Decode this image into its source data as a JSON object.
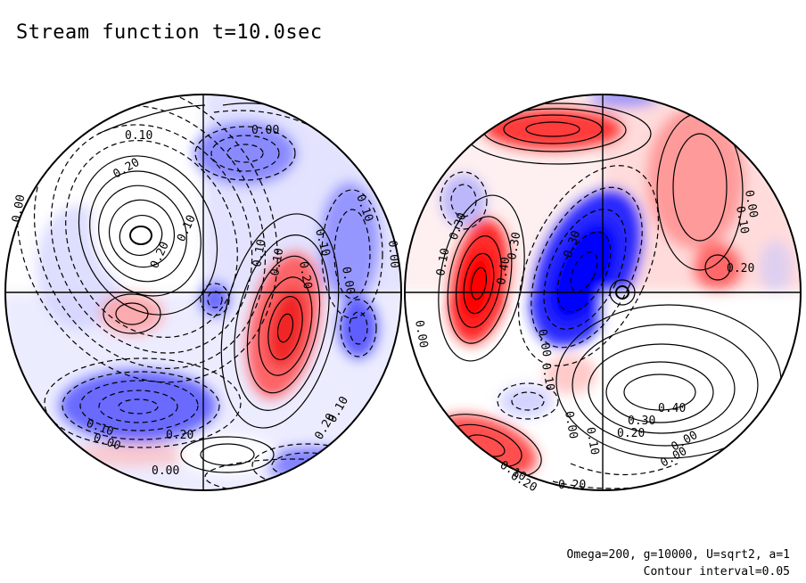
{
  "figure": {
    "title": "Stream function t=10.0sec",
    "params_line1": "Omega=200, g=10000, U=sqrt2, a=1",
    "params_line2": "Contour interval=0.05"
  },
  "colors": {
    "positive": "#ff0000",
    "negative": "#0000ff",
    "line": "#000000",
    "background": "#ffffff"
  },
  "hemispheres": [
    {
      "name": "left-disc",
      "contour_labels": [
        "0.10",
        "0.00",
        "0.20",
        "0.20",
        "0.10",
        "0.10",
        "0.20",
        "0.10",
        "0.10",
        "0.10",
        "0.00",
        "0.00",
        "0.00",
        "0.20",
        "0.00",
        "0.10",
        "0.20",
        "0.00",
        "0.10"
      ]
    },
    {
      "name": "right-disc",
      "contour_labels": [
        "0.00",
        "0.10",
        "0.30",
        "0.40",
        "0.30",
        "0.30",
        "0.20",
        "0.00",
        "0.00",
        "0.10",
        "0.10",
        "0.20",
        "0.00",
        "0.30",
        "0.40",
        "0.20",
        "0.10",
        "0.00",
        "0.20",
        "0.00",
        "0.10"
      ]
    }
  ]
}
